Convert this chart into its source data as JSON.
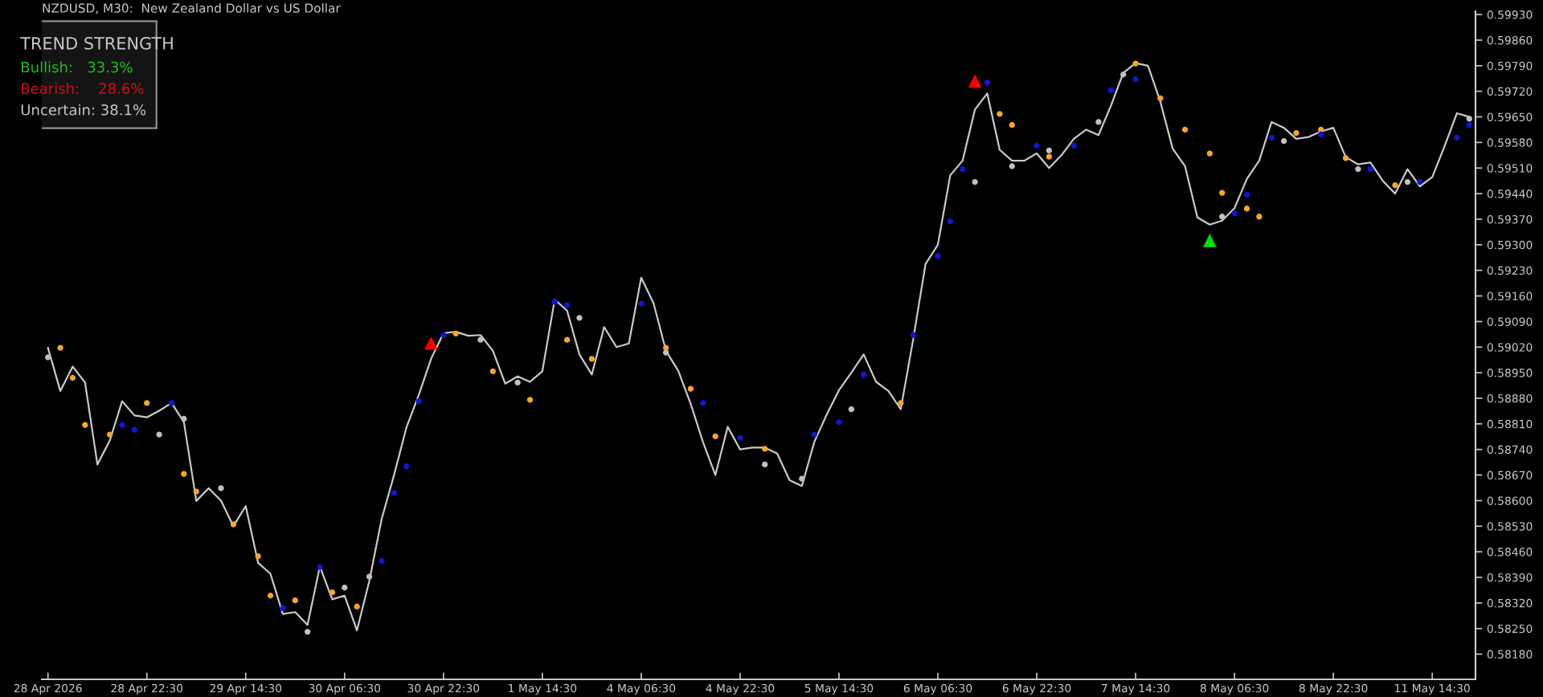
{
  "chart_data": {
    "type": "line",
    "title": "NZDUSD, M30:  New Zealand Dollar vs US Dollar",
    "annotations": [
      "TREND STRENGTH",
      "Bullish:   33.3%",
      "Bearish:    28.6%",
      "Uncertain: 38.1%"
    ],
    "categories": [
      "28 Apr 2026",
      null,
      null,
      null,
      null,
      null,
      null,
      null,
      "28 Apr 22:30",
      null,
      null,
      null,
      null,
      null,
      null,
      null,
      "29 Apr 14:30",
      null,
      null,
      null,
      null,
      null,
      null,
      null,
      "30 Apr 06:30",
      null,
      null,
      null,
      null,
      null,
      null,
      null,
      "30 Apr 22:30",
      null,
      null,
      null,
      null,
      null,
      null,
      null,
      "1 May 14:30",
      null,
      null,
      null,
      null,
      null,
      null,
      null,
      "4 May 06:30",
      null,
      null,
      null,
      null,
      null,
      null,
      null,
      "4 May 22:30",
      null,
      null,
      null,
      null,
      null,
      null,
      null,
      "5 May 14:30",
      null,
      null,
      null,
      null,
      null,
      null,
      null,
      "6 May 06:30",
      null,
      null,
      null,
      null,
      null,
      null,
      null,
      "6 May 22:30",
      null,
      null,
      null,
      null,
      null,
      null,
      null,
      "7 May 14:30",
      null,
      null,
      null,
      null,
      null,
      null,
      null,
      "8 May 06:30",
      null,
      null,
      null,
      null,
      null,
      null,
      null,
      "8 May 22:30",
      null,
      null,
      null,
      null,
      null,
      null,
      null,
      "11 May 14:30",
      null,
      null,
      null
    ],
    "ylim": [
      0.58111,
      0.59939
    ],
    "yticks": [
      {
        "value": 0.5993,
        "label": "0.59930"
      },
      {
        "value": 0.5986,
        "label": "0.59860"
      },
      {
        "value": 0.5979,
        "label": "0.59790"
      },
      {
        "value": 0.5972,
        "label": "0.59720"
      },
      {
        "value": 0.5965,
        "label": "0.59650"
      },
      {
        "value": 0.5958,
        "label": "0.59580"
      },
      {
        "value": 0.5951,
        "label": "0.59510"
      },
      {
        "value": 0.5944,
        "label": "0.59440"
      },
      {
        "value": 0.5937,
        "label": "0.59370"
      },
      {
        "value": 0.593,
        "label": "0.59300"
      },
      {
        "value": 0.5923,
        "label": "0.59230"
      },
      {
        "value": 0.5916,
        "label": "0.59160"
      },
      {
        "value": 0.5909,
        "label": "0.59090"
      },
      {
        "value": 0.5902,
        "label": "0.59020"
      },
      {
        "value": 0.5895,
        "label": "0.58950"
      },
      {
        "value": 0.5888,
        "label": "0.58880"
      },
      {
        "value": 0.5881,
        "label": "0.58810"
      },
      {
        "value": 0.5874,
        "label": "0.58740"
      },
      {
        "value": 0.5867,
        "label": "0.58670"
      },
      {
        "value": 0.586,
        "label": "0.58600"
      },
      {
        "value": 0.5853,
        "label": "0.58530"
      },
      {
        "value": 0.5846,
        "label": "0.58460"
      },
      {
        "value": 0.5839,
        "label": "0.58390"
      },
      {
        "value": 0.5832,
        "label": "0.58320"
      },
      {
        "value": 0.5825,
        "label": "0.58250"
      },
      {
        "value": 0.5818,
        "label": "0.58180"
      }
    ],
    "grid": false,
    "series": [
      {
        "color": "#c8c8c8",
        "marker": "none",
        "line_style": "solid",
        "values": [
          0.59018,
          0.589,
          0.58967,
          0.58923,
          0.58699,
          0.58764,
          0.58872,
          0.58833,
          0.58828,
          0.58846,
          0.58867,
          0.58815,
          0.58599,
          0.58634,
          0.586,
          0.5853,
          0.58585,
          0.5843,
          0.584,
          0.5829,
          0.58295,
          0.5826,
          0.5842,
          0.5833,
          0.5834,
          0.58245,
          0.5838,
          0.5855,
          0.5867,
          0.588,
          0.58889,
          0.58988,
          0.59058,
          0.59062,
          0.59051,
          0.59053,
          0.5901,
          0.5892,
          0.5894,
          0.58925,
          0.58954,
          0.5915,
          0.5912,
          0.59,
          0.58945,
          0.59075,
          0.5902,
          0.5903,
          0.5921,
          0.5914,
          0.5901,
          0.58955,
          0.58865,
          0.5876,
          0.5867,
          0.58802,
          0.5874,
          0.58745,
          0.58745,
          0.58729,
          0.58656,
          0.5864,
          0.5876,
          0.58835,
          0.58902,
          0.5895,
          0.59,
          0.58925,
          0.589,
          0.5885,
          0.5904,
          0.59247,
          0.593,
          0.5949,
          0.5953,
          0.5967,
          0.59714,
          0.5956,
          0.5953,
          0.5953,
          0.5955,
          0.5951,
          0.59545,
          0.5959,
          0.59615,
          0.596,
          0.5968,
          0.5977,
          0.59797,
          0.5979,
          0.59692,
          0.59563,
          0.59515,
          0.59375,
          0.59355,
          0.59366,
          0.594,
          0.5948,
          0.5953,
          0.59636,
          0.5962,
          0.5959,
          0.59595,
          0.5961,
          0.5962,
          0.5954,
          0.5952,
          0.59525,
          0.59475,
          0.5944,
          0.59507,
          0.5946,
          0.59485,
          0.5957,
          0.5966,
          0.5965
        ]
      },
      {
        "type": "scatter",
        "color": "#f5a623",
        "marker": "circle",
        "values": [
          null,
          0.59018,
          0.58936,
          0.58807,
          null,
          0.58781,
          null,
          null,
          0.58867,
          null,
          null,
          0.58673,
          0.58625,
          null,
          null,
          0.58535,
          null,
          0.58448,
          0.5834,
          null,
          0.58327,
          null,
          null,
          0.58349,
          null,
          0.5831,
          null,
          null,
          null,
          null,
          null,
          null,
          null,
          0.59057,
          null,
          null,
          0.58954,
          null,
          null,
          0.58876,
          null,
          null,
          0.5904,
          null,
          0.58988,
          null,
          null,
          null,
          null,
          null,
          0.59018,
          null,
          0.58906,
          null,
          0.58776,
          null,
          null,
          null,
          0.58742,
          null,
          null,
          null,
          null,
          null,
          null,
          null,
          null,
          null,
          null,
          0.58867,
          null,
          null,
          null,
          null,
          null,
          null,
          null,
          0.59658,
          0.59628,
          null,
          null,
          0.59541,
          null,
          null,
          null,
          null,
          null,
          null,
          0.59796,
          null,
          0.59701,
          null,
          0.59615,
          null,
          0.5955,
          0.59442,
          null,
          0.59399,
          0.59377,
          null,
          null,
          0.59606,
          null,
          0.59615,
          null,
          0.59537,
          null,
          null,
          null,
          0.59463,
          null,
          null,
          null,
          null,
          null,
          null
        ]
      },
      {
        "type": "scatter",
        "color": "#1414d2",
        "marker": "circle",
        "values": [
          null,
          null,
          null,
          null,
          null,
          null,
          0.58807,
          0.58794,
          null,
          null,
          0.58867,
          null,
          null,
          null,
          null,
          null,
          null,
          null,
          null,
          0.58306,
          null,
          null,
          0.58418,
          null,
          null,
          null,
          null,
          0.58435,
          0.58621,
          0.58694,
          0.58872,
          null,
          0.59053,
          null,
          null,
          null,
          null,
          null,
          null,
          null,
          null,
          0.59144,
          0.59135,
          null,
          null,
          null,
          null,
          null,
          0.59139,
          null,
          null,
          null,
          null,
          0.58867,
          null,
          null,
          0.58772,
          null,
          null,
          null,
          null,
          null,
          0.58781,
          null,
          0.58815,
          null,
          0.58945,
          null,
          null,
          null,
          0.59053,
          null,
          0.59269,
          0.59364,
          0.59507,
          null,
          0.59744,
          null,
          null,
          null,
          0.59571,
          null,
          null,
          0.59571,
          null,
          null,
          0.59723,
          null,
          0.59753,
          null,
          null,
          null,
          null,
          null,
          null,
          null,
          0.59386,
          0.59437,
          null,
          0.59593,
          null,
          null,
          null,
          0.59602,
          null,
          null,
          null,
          0.59507,
          null,
          null,
          null,
          0.59472,
          null,
          null,
          0.59593,
          0.59628
        ]
      },
      {
        "type": "scatter",
        "color": "#c0c0c0",
        "marker": "circle",
        "values": [
          0.58992,
          null,
          null,
          null,
          null,
          null,
          null,
          null,
          null,
          0.58781,
          null,
          0.58824,
          null,
          null,
          0.58634,
          null,
          null,
          null,
          null,
          null,
          null,
          0.58241,
          null,
          null,
          0.58362,
          null,
          0.58392,
          null,
          null,
          null,
          null,
          null,
          null,
          null,
          null,
          0.5904,
          null,
          null,
          0.58923,
          null,
          null,
          null,
          null,
          0.591,
          null,
          null,
          null,
          null,
          null,
          null,
          0.59005,
          null,
          null,
          null,
          null,
          null,
          null,
          null,
          0.58699,
          null,
          null,
          0.5866,
          null,
          null,
          null,
          0.5885,
          null,
          null,
          null,
          null,
          null,
          null,
          null,
          null,
          null,
          0.59472,
          null,
          null,
          0.59515,
          null,
          null,
          0.59558,
          null,
          null,
          null,
          0.59636,
          null,
          0.59766,
          null,
          null,
          null,
          null,
          null,
          null,
          null,
          0.59377,
          null,
          null,
          null,
          null,
          0.59584,
          null,
          null,
          null,
          null,
          null,
          0.59507,
          null,
          null,
          null,
          0.59472,
          null,
          null,
          null,
          null,
          0.59645
        ]
      },
      {
        "type": "scatter",
        "color": "#ff0000",
        "marker": "triangle",
        "values": [
          null,
          null,
          null,
          null,
          null,
          null,
          null,
          null,
          null,
          null,
          null,
          null,
          null,
          null,
          null,
          null,
          null,
          null,
          null,
          null,
          null,
          null,
          null,
          null,
          null,
          null,
          null,
          null,
          null,
          null,
          null,
          0.59031,
          null,
          null,
          null,
          null,
          null,
          null,
          null,
          null,
          null,
          null,
          null,
          null,
          null,
          null,
          null,
          null,
          null,
          null,
          null,
          null,
          null,
          null,
          null,
          null,
          null,
          null,
          null,
          null,
          null,
          null,
          null,
          null,
          null,
          null,
          null,
          null,
          null,
          null,
          null,
          null,
          null,
          null,
          null,
          0.59748,
          null,
          null,
          null,
          null,
          null,
          null,
          null,
          null,
          null,
          null,
          null,
          null,
          null,
          null,
          null,
          null,
          null,
          null,
          null,
          null,
          null,
          null,
          null,
          null,
          null,
          null,
          null,
          null,
          null,
          null,
          null,
          null,
          null,
          null,
          null,
          null,
          null,
          null,
          null,
          null
        ]
      },
      {
        "type": "scatter",
        "color": "#00e000",
        "marker": "triangle",
        "values": [
          null,
          null,
          null,
          null,
          null,
          null,
          null,
          null,
          null,
          null,
          null,
          null,
          null,
          null,
          null,
          null,
          null,
          null,
          null,
          null,
          null,
          null,
          null,
          null,
          null,
          null,
          null,
          null,
          null,
          null,
          null,
          null,
          null,
          null,
          null,
          null,
          null,
          null,
          null,
          null,
          null,
          null,
          null,
          null,
          null,
          null,
          null,
          null,
          null,
          null,
          null,
          null,
          null,
          null,
          null,
          null,
          null,
          null,
          null,
          null,
          null,
          null,
          null,
          null,
          null,
          null,
          null,
          null,
          null,
          null,
          null,
          null,
          null,
          null,
          null,
          null,
          null,
          null,
          null,
          null,
          null,
          null,
          null,
          null,
          null,
          null,
          null,
          null,
          null,
          null,
          null,
          null,
          null,
          null,
          0.59312,
          null,
          null,
          null,
          null,
          null,
          null,
          null,
          null,
          null,
          null,
          null,
          null,
          null,
          null,
          null,
          null,
          null,
          null,
          null,
          null,
          null
        ]
      }
    ]
  }
}
